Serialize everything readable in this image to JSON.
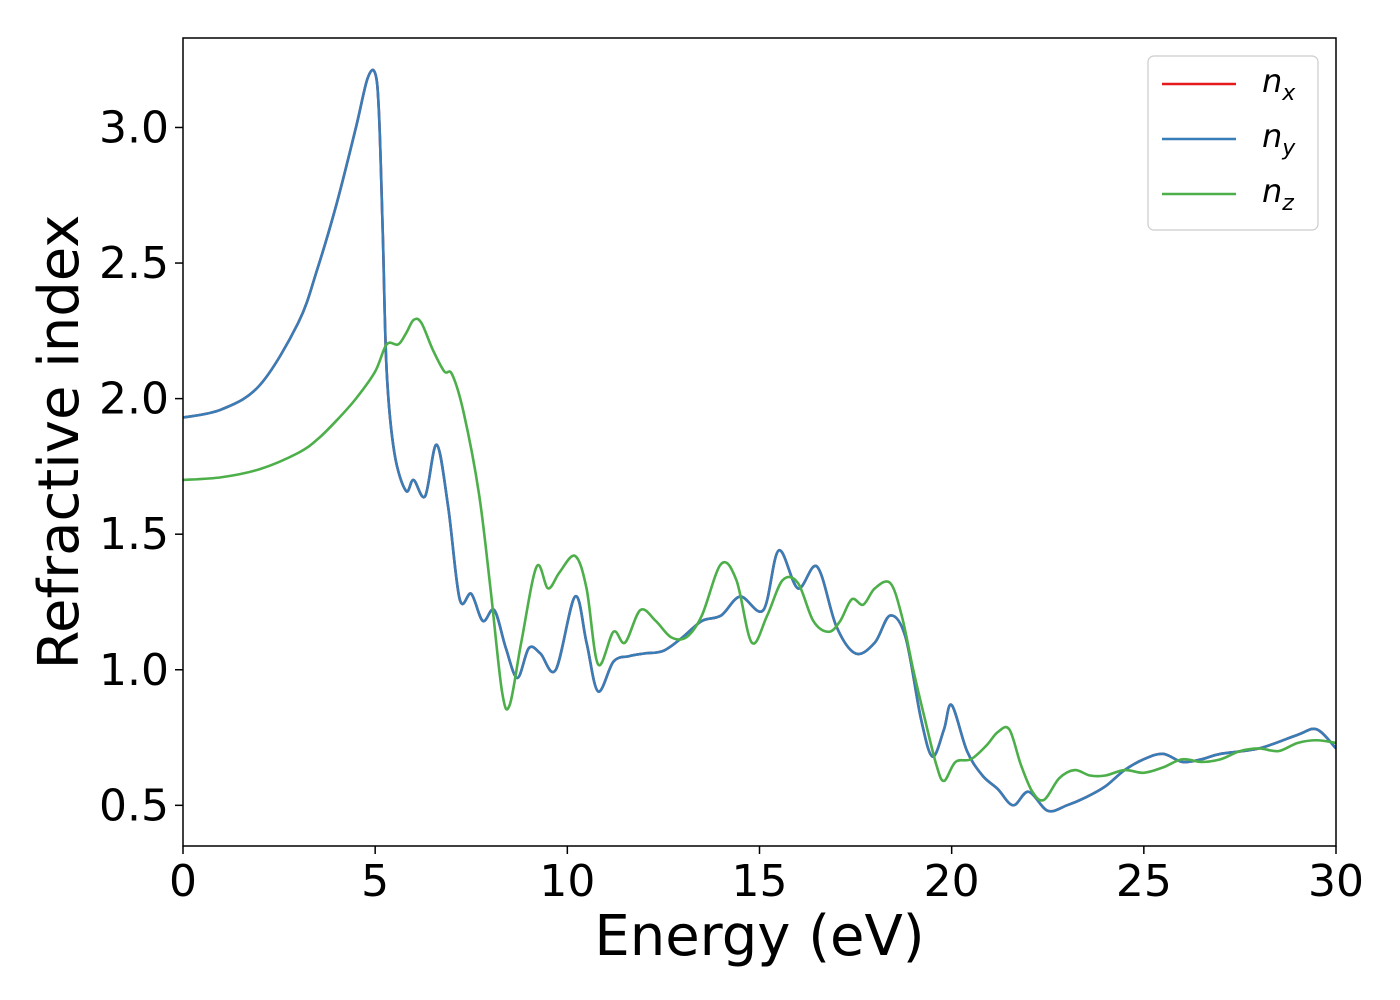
{
  "chart_data": {
    "type": "line",
    "xlabel": "Energy (eV)",
    "ylabel": "Refractive index",
    "xlim": [
      0,
      30
    ],
    "ylim": [
      0.35,
      3.33
    ],
    "xticks": [
      0,
      5,
      10,
      15,
      20,
      25,
      30
    ],
    "yticks": [
      0.5,
      1.0,
      1.5,
      2.0,
      2.5,
      3.0
    ],
    "xtick_labels": [
      "0",
      "5",
      "10",
      "15",
      "20",
      "25",
      "30"
    ],
    "ytick_labels": [
      "0.5",
      "1.0",
      "1.5",
      "2.0",
      "2.5",
      "3.0"
    ],
    "grid": false,
    "legend_position": "top-right",
    "series": [
      {
        "name": "n_x",
        "legend_base": "n",
        "legend_sub": "x",
        "color": "#e41a1c",
        "x": [
          0,
          1,
          2,
          3,
          3.5,
          4,
          4.5,
          4.8,
          5.0,
          5.1,
          5.2,
          5.3,
          5.5,
          5.8,
          6.0,
          6.3,
          6.6,
          6.9,
          7.2,
          7.5,
          7.8,
          8.1,
          8.4,
          8.7,
          9.0,
          9.3,
          9.7,
          10.2,
          10.5,
          10.8,
          11.2,
          11.6,
          12,
          12.5,
          13,
          13.5,
          14,
          14.5,
          15.1,
          15.5,
          16,
          16.5,
          17,
          17.5,
          18,
          18.4,
          18.8,
          19.2,
          19.5,
          19.8,
          20,
          20.4,
          20.8,
          21.2,
          21.6,
          22,
          22.5,
          23,
          23.5,
          24,
          24.5,
          25,
          25.5,
          26,
          26.5,
          27,
          28,
          29,
          29.5,
          30
        ],
        "y": [
          1.93,
          1.96,
          2.05,
          2.28,
          2.48,
          2.72,
          3.0,
          3.18,
          3.2,
          3.05,
          2.6,
          2.1,
          1.8,
          1.66,
          1.7,
          1.64,
          1.83,
          1.6,
          1.26,
          1.28,
          1.18,
          1.22,
          1.08,
          0.97,
          1.08,
          1.06,
          1.0,
          1.27,
          1.1,
          0.92,
          1.03,
          1.05,
          1.06,
          1.07,
          1.12,
          1.18,
          1.2,
          1.27,
          1.22,
          1.44,
          1.3,
          1.38,
          1.16,
          1.06,
          1.1,
          1.2,
          1.12,
          0.82,
          0.68,
          0.78,
          0.87,
          0.7,
          0.61,
          0.56,
          0.5,
          0.55,
          0.48,
          0.5,
          0.53,
          0.57,
          0.63,
          0.67,
          0.69,
          0.66,
          0.67,
          0.69,
          0.71,
          0.76,
          0.78,
          0.71
        ]
      },
      {
        "name": "n_y",
        "legend_base": "n",
        "legend_sub": "y",
        "color": "#377eb8",
        "x": [
          0,
          1,
          2,
          3,
          3.5,
          4,
          4.5,
          4.8,
          5.0,
          5.1,
          5.2,
          5.3,
          5.5,
          5.8,
          6.0,
          6.3,
          6.6,
          6.9,
          7.2,
          7.5,
          7.8,
          8.1,
          8.4,
          8.7,
          9.0,
          9.3,
          9.7,
          10.2,
          10.5,
          10.8,
          11.2,
          11.6,
          12,
          12.5,
          13,
          13.5,
          14,
          14.5,
          15.1,
          15.5,
          16,
          16.5,
          17,
          17.5,
          18,
          18.4,
          18.8,
          19.2,
          19.5,
          19.8,
          20,
          20.4,
          20.8,
          21.2,
          21.6,
          22,
          22.5,
          23,
          23.5,
          24,
          24.5,
          25,
          25.5,
          26,
          26.5,
          27,
          28,
          29,
          29.5,
          30
        ],
        "y": [
          1.93,
          1.96,
          2.05,
          2.28,
          2.48,
          2.72,
          3.0,
          3.18,
          3.2,
          3.05,
          2.6,
          2.1,
          1.8,
          1.66,
          1.7,
          1.64,
          1.83,
          1.6,
          1.26,
          1.28,
          1.18,
          1.22,
          1.08,
          0.97,
          1.08,
          1.06,
          1.0,
          1.27,
          1.1,
          0.92,
          1.03,
          1.05,
          1.06,
          1.07,
          1.12,
          1.18,
          1.2,
          1.27,
          1.22,
          1.44,
          1.3,
          1.38,
          1.16,
          1.06,
          1.1,
          1.2,
          1.12,
          0.82,
          0.68,
          0.78,
          0.87,
          0.7,
          0.61,
          0.56,
          0.5,
          0.55,
          0.48,
          0.5,
          0.53,
          0.57,
          0.63,
          0.67,
          0.69,
          0.66,
          0.67,
          0.69,
          0.71,
          0.76,
          0.78,
          0.71
        ]
      },
      {
        "name": "n_z",
        "legend_base": "n",
        "legend_sub": "z",
        "color": "#4daf4a",
        "x": [
          0,
          1,
          2,
          3,
          3.5,
          4,
          4.5,
          5.0,
          5.3,
          5.6,
          5.8,
          6.0,
          6.2,
          6.5,
          6.8,
          7.0,
          7.3,
          7.7,
          8.0,
          8.3,
          8.5,
          8.8,
          9.2,
          9.5,
          9.8,
          10.2,
          10.5,
          10.8,
          11.2,
          11.5,
          11.9,
          12.3,
          12.7,
          13.1,
          13.5,
          14,
          14.4,
          14.8,
          15.2,
          15.6,
          16,
          16.4,
          16.8,
          17.1,
          17.4,
          17.7,
          18.0,
          18.4,
          18.7,
          19.0,
          19.3,
          19.6,
          19.8,
          20.1,
          20.5,
          20.9,
          21.2,
          21.5,
          21.8,
          22.1,
          22.4,
          22.8,
          23.2,
          23.6,
          24.0,
          24.5,
          25.0,
          25.5,
          26.0,
          26.5,
          27.0,
          27.5,
          28,
          28.5,
          29,
          29.5,
          30
        ],
        "y": [
          1.7,
          1.71,
          1.74,
          1.8,
          1.85,
          1.92,
          2.0,
          2.1,
          2.2,
          2.2,
          2.24,
          2.29,
          2.28,
          2.18,
          2.1,
          2.09,
          1.95,
          1.65,
          1.3,
          0.92,
          0.87,
          1.1,
          1.38,
          1.3,
          1.36,
          1.42,
          1.3,
          1.02,
          1.14,
          1.1,
          1.22,
          1.18,
          1.12,
          1.12,
          1.2,
          1.39,
          1.33,
          1.1,
          1.2,
          1.33,
          1.32,
          1.18,
          1.14,
          1.18,
          1.26,
          1.24,
          1.3,
          1.32,
          1.2,
          1.0,
          0.82,
          0.65,
          0.59,
          0.66,
          0.67,
          0.72,
          0.77,
          0.78,
          0.65,
          0.55,
          0.52,
          0.6,
          0.63,
          0.61,
          0.61,
          0.63,
          0.62,
          0.64,
          0.67,
          0.66,
          0.67,
          0.7,
          0.71,
          0.7,
          0.73,
          0.74,
          0.73
        ]
      }
    ]
  }
}
